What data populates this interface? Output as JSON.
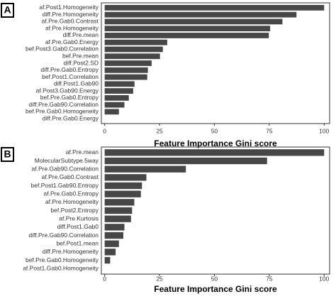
{
  "chart_data": [
    {
      "type": "barh",
      "panel_label": "A",
      "color": "#474747",
      "xlabel": "Feature Importance Gini score",
      "categories": [
        "af.Post1.Homogeneity",
        "diff.Pre.Homogeneity",
        "af.Pre.Gab0.Contrast",
        "af.Pre.Homogeneity",
        "diff.Pre.mean",
        "af.Pre.Gab0.Energy",
        "bef.Post3.Gab0.Correlation",
        "bef.Pre.mean",
        "diff.Post2.SD",
        "diff.Pre.Gab0.Entropy",
        "bef.Post1.Correlation",
        "diff.Post1.Gab90",
        "af.Post3.Gab90.Energy",
        "bef.Pre.Gab0.Entropy",
        "diff.Pre.Gab90.Correlation",
        "bef.Pre.Gab0.Homogeneity",
        "diff.Pre.Gab0.Energy"
      ],
      "values": [
        100,
        87.4,
        81,
        75.4,
        74.8,
        28.5,
        26.5,
        25.2,
        21.4,
        19.7,
        19.4,
        13.6,
        13,
        11,
        9,
        6.5,
        0
      ],
      "xlim": [
        -1.5,
        102.5
      ],
      "xticks": [
        0,
        25,
        50,
        75,
        100
      ]
    },
    {
      "type": "barh",
      "panel_label": "B",
      "color": "#474747",
      "xlabel": "Feature Importance Gini score",
      "categories": [
        "af.Pre.mean",
        "MolecularSubtype.5way",
        "af.Pre.Gab90.Correlation",
        "af.Pre.Gab0.Contrast",
        "bef.Post1.Gab90.Entropy",
        "af.Pre.Gab0.Entropy",
        "af.Pre.Homogeneity",
        "bef.Post2.Entropy",
        "af.Pre.Kurtosis",
        "diff.Post1.Gab0",
        "diff.Pre.Gab90.Correlation",
        "bef.Post1.mean",
        "diff.Pre.Homogeneity",
        "bef.Pre.Gab0.Homogeneity",
        "af.Post1.Gab0.Homogeneity"
      ],
      "values": [
        100,
        74,
        37,
        19,
        17,
        16.5,
        13.5,
        12.5,
        12,
        9,
        8.5,
        6.5,
        5,
        2.5,
        0
      ],
      "xlim": [
        -1.5,
        102.5
      ],
      "xticks": [
        0,
        25,
        50,
        75,
        100
      ]
    }
  ]
}
